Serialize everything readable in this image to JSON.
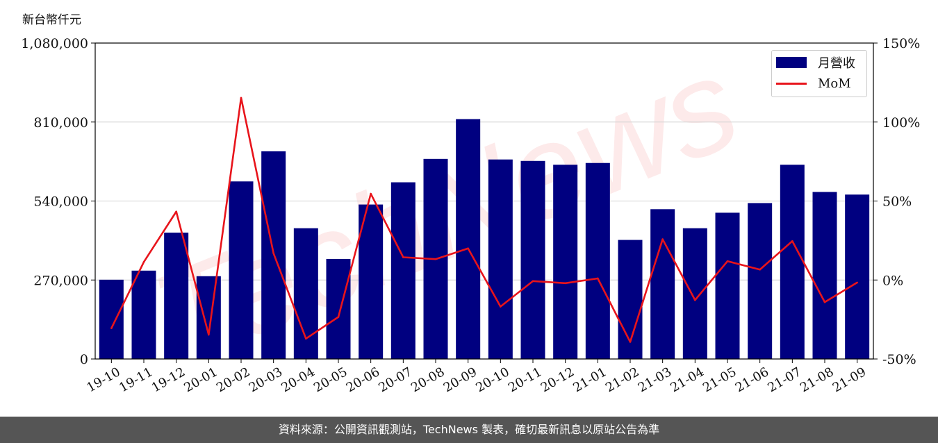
{
  "watermark": "TechNews",
  "footer": "資料來源：公開資訊觀測站，TechNews 製表，確切最新訊息以原站公告為準",
  "chart_data": {
    "type": "bar",
    "unit_label": "新台幣仟元",
    "categories": [
      "19-10",
      "19-11",
      "19-12",
      "20-01",
      "20-02",
      "20-03",
      "20-04",
      "20-05",
      "20-06",
      "20-07",
      "20-08",
      "20-09",
      "20-10",
      "20-11",
      "20-12",
      "21-01",
      "21-02",
      "21-03",
      "21-04",
      "21-05",
      "21-06",
      "21-07",
      "21-08",
      "21-09"
    ],
    "series": [
      {
        "name": "月營收",
        "type": "bar",
        "axis": "left",
        "color": "#000080",
        "values": [
          271000,
          302000,
          432000,
          283000,
          607000,
          710000,
          447000,
          342000,
          528000,
          604000,
          684000,
          820000,
          682000,
          677000,
          664000,
          670000,
          407000,
          512000,
          447000,
          500000,
          533000,
          664000,
          571000,
          562000
        ]
      },
      {
        "name": "MoM",
        "type": "line",
        "axis": "right",
        "color": "#e8141b",
        "values": [
          -30.5,
          11.4,
          43.3,
          -34.6,
          115.3,
          16.9,
          -37.1,
          -23.4,
          54.6,
          14.4,
          13.2,
          20.0,
          -16.8,
          -0.7,
          -2.0,
          1.0,
          -39.2,
          25.8,
          -12.7,
          11.9,
          6.6,
          24.6,
          -14.0,
          -1.6
        ]
      }
    ],
    "yleft": {
      "lim": [
        0,
        1080000
      ],
      "ticks": [
        0,
        270000,
        540000,
        810000,
        1080000
      ],
      "tick_labels": [
        "0",
        "270,000",
        "540,000",
        "810,000",
        "1,080,000"
      ]
    },
    "yright": {
      "lim": [
        -50,
        150
      ],
      "ticks": [
        -50,
        0,
        50,
        100,
        150
      ],
      "tick_labels": [
        "-50%",
        "0%",
        "50%",
        "100%",
        "150%"
      ]
    },
    "grid": true,
    "legend_position": "top-right"
  }
}
